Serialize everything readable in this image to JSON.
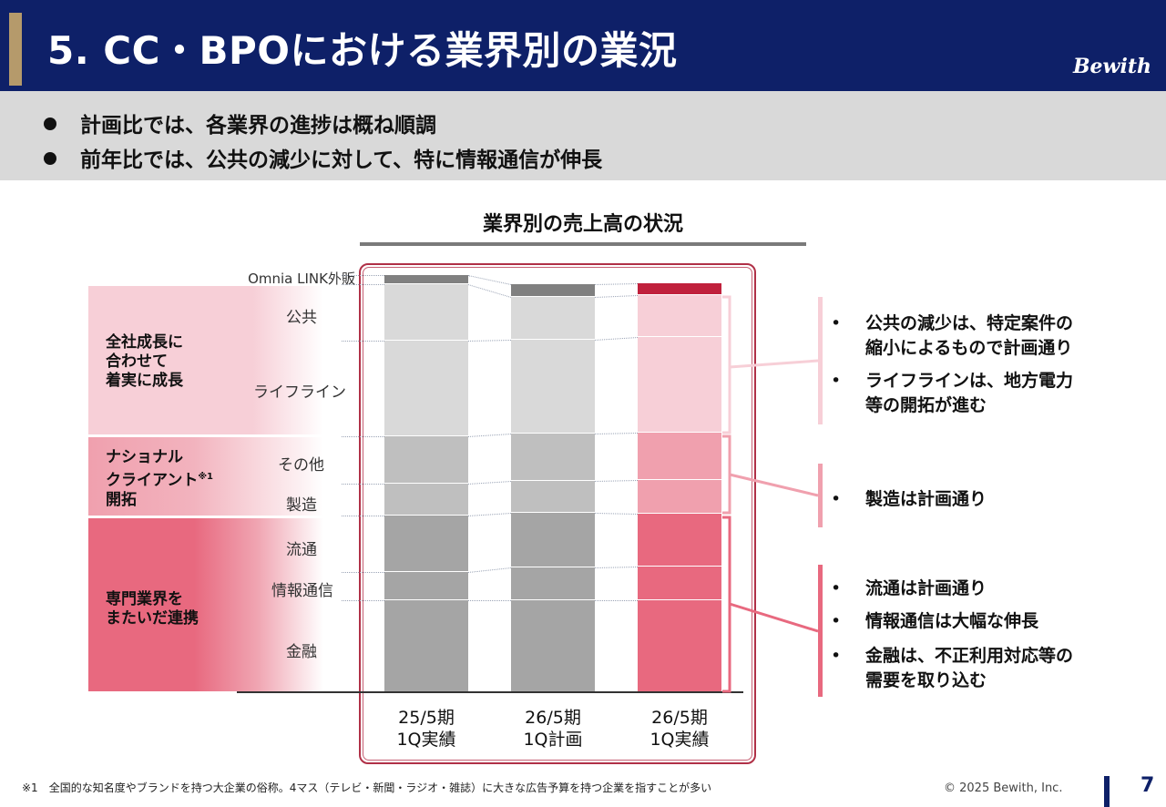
{
  "header": {
    "title": "5. CC・BPOにおける業界別の業況",
    "logo": "Bewith",
    "background": "#0e2068",
    "accent": "#b59a6b"
  },
  "summary": [
    "計画比では、各業界の進捗は概ね順調",
    "前年比では、公共の減少に対して、特に情報通信が伸長"
  ],
  "chart_data": {
    "type": "bar",
    "title": "業界別の売上高の状況",
    "stacked": true,
    "categories": [
      "25/5期 1Q実績",
      "26/5期 1Q計画",
      "26/5期 1Q実績"
    ],
    "x_labels": [
      [
        "25/5期",
        "1Q実績"
      ],
      [
        "26/5期",
        "1Q計画"
      ],
      [
        "26/5期",
        "1Q実績"
      ]
    ],
    "series": [
      {
        "name": "金融",
        "values": [
          100,
          100,
          100
        ]
      },
      {
        "name": "情報通信",
        "values": [
          31,
          36,
          37
        ]
      },
      {
        "name": "流通",
        "values": [
          62,
          60,
          58
        ]
      },
      {
        "name": "製造",
        "values": [
          35,
          35,
          37
        ]
      },
      {
        "name": "その他",
        "values": [
          53,
          53,
          53
        ]
      },
      {
        "name": "ライフライン",
        "values": [
          105,
          103,
          105
        ]
      },
      {
        "name": "公共",
        "values": [
          62,
          47,
          46
        ]
      },
      {
        "name": "Omnia LINK外販",
        "values": [
          10,
          14,
          13
        ]
      }
    ],
    "groups": [
      {
        "label": [
          "全社成長に",
          "合わせて",
          "着実に成長"
        ],
        "segments": [
          "ライフライン",
          "公共"
        ],
        "color": "#f7cfd7"
      },
      {
        "label": [
          "ナショナル",
          "クライアント",
          "開拓"
        ],
        "footnote_mark": "※1",
        "segments": [
          "製造",
          "その他"
        ],
        "color": "#f0a0ae"
      },
      {
        "label": [
          "専門業界を",
          "またいだ連携"
        ],
        "segments": [
          "金融",
          "情報通信",
          "流通"
        ],
        "color": "#e8697f"
      }
    ],
    "colors": {
      "previous_bars": {
        "金融": "#a5a5a5",
        "情報通信": "#a5a5a5",
        "流通": "#a5a5a5",
        "製造": "#bfbfbf",
        "その他": "#bfbfbf",
        "ライフライン": "#d9d9d9",
        "公共": "#d9d9d9",
        "Omnia LINK外販": "#808080"
      },
      "current_bar": {
        "金融": "#e8697f",
        "情報通信": "#e8697f",
        "流通": "#e8697f",
        "製造": "#f0a0ae",
        "その他": "#f0a0ae",
        "ライフライン": "#f7cfd7",
        "公共": "#f7cfd7",
        "Omnia LINK外販": "#c0203c"
      },
      "highlight": "#b03047"
    },
    "highlighted_category": "26/5期 1Q実績",
    "grid": false,
    "legend": "left"
  },
  "comments": [
    {
      "group": 0,
      "items": [
        [
          "公共の減少は、特定案件の",
          "縮小によるもので計画通り"
        ],
        [
          "ライフラインは、地方電力",
          "等の開拓が進む"
        ]
      ]
    },
    {
      "group": 1,
      "items": [
        [
          "製造は計画通り"
        ]
      ]
    },
    {
      "group": 2,
      "items": [
        [
          "流通は計画通り"
        ],
        [
          "情報通信は大幅な伸長"
        ],
        [
          "金融は、不正利用対応等の",
          "需要を取り込む"
        ]
      ]
    }
  ],
  "footer": {
    "footnote": "※1　全国的な知名度やブランドを持つ大企業の俗称。4マス（テレビ・新聞・ラジオ・雑誌）に大きな広告予算を持つ企業を指すことが多い",
    "copyright": "© 2025 Bewith, Inc.",
    "page_number": "7"
  }
}
